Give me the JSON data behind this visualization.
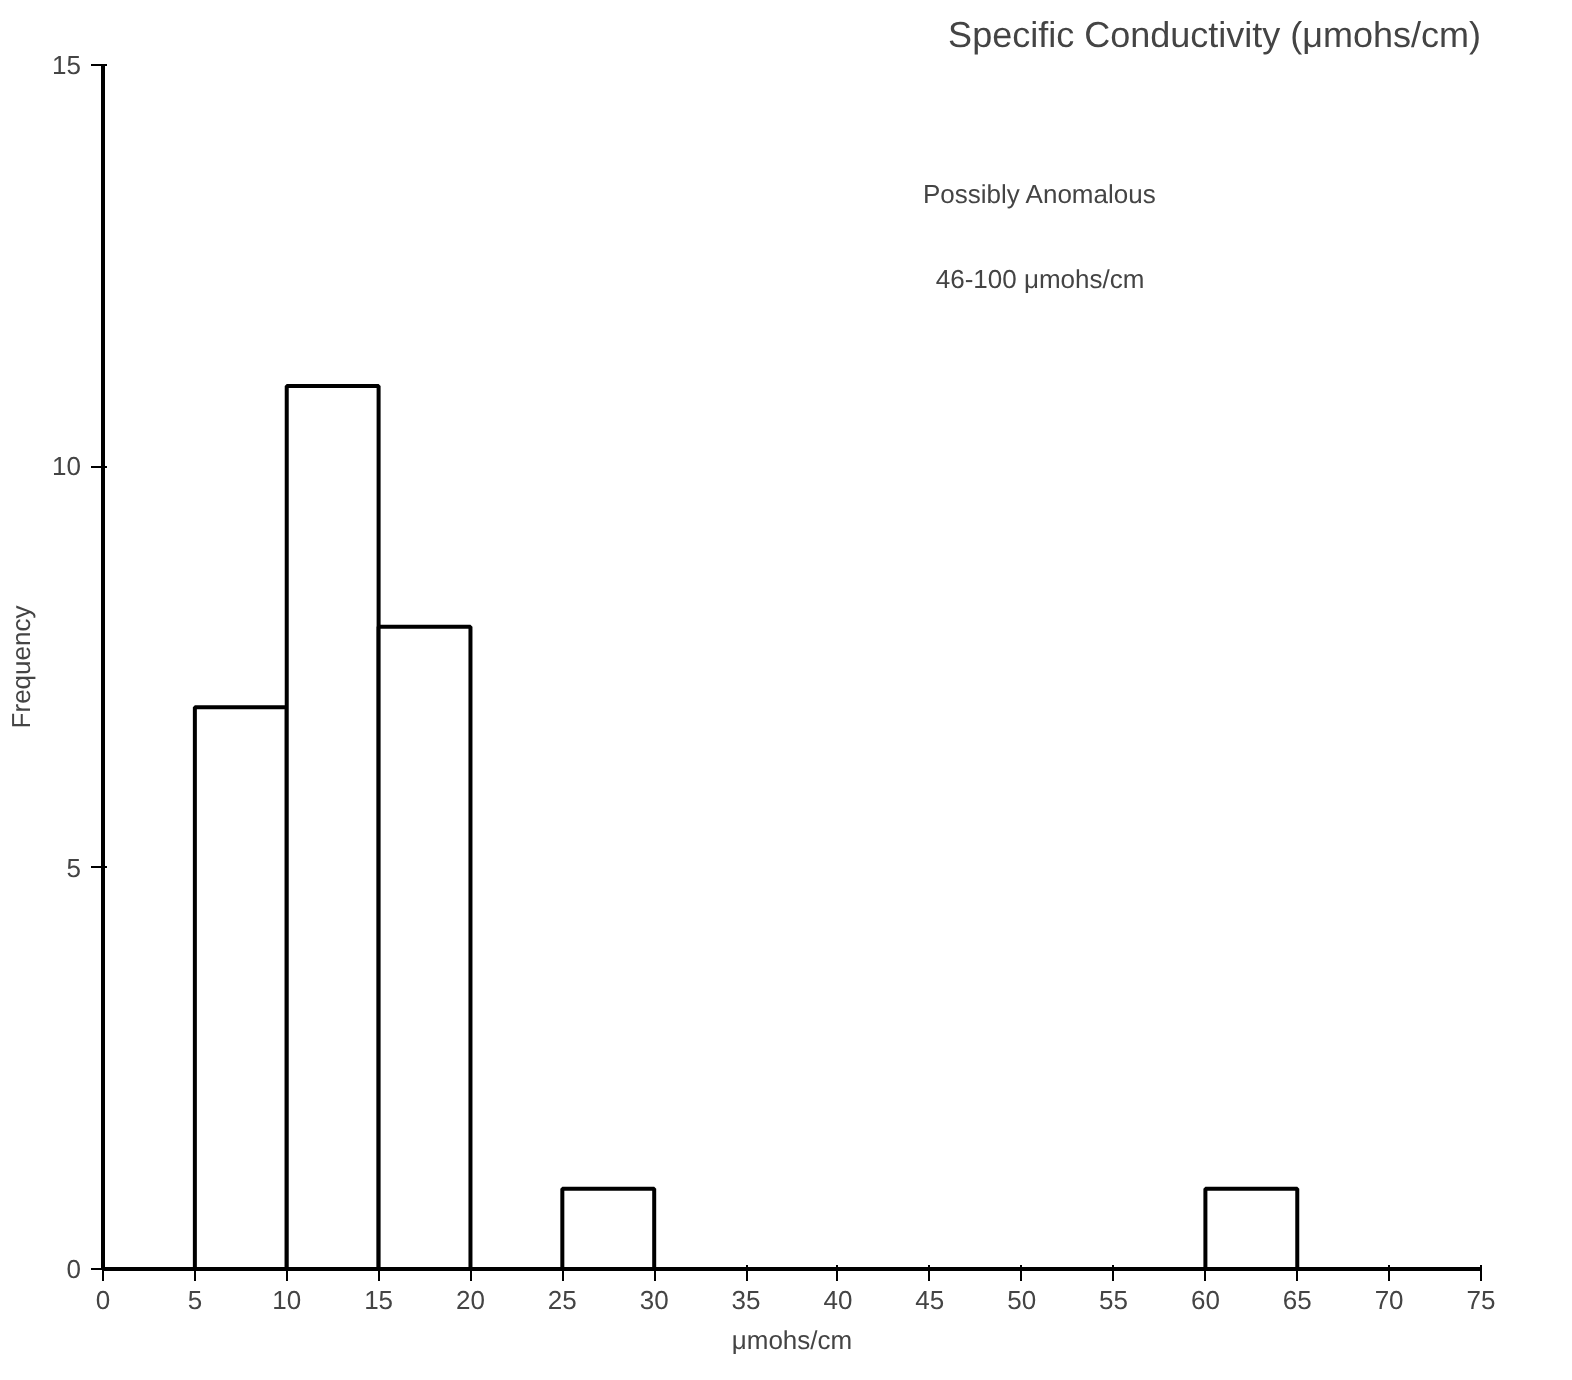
{
  "chart_data": {
    "type": "histogram",
    "title": "Specific Conductivity (μmohs/cm)",
    "xlabel": "μmohs/cm",
    "ylabel": "Frequency",
    "bins": [
      5,
      10,
      15,
      20,
      25,
      30,
      35,
      40,
      45,
      50,
      55,
      60,
      65
    ],
    "values": [
      7,
      11,
      8,
      0,
      1,
      0,
      0,
      0,
      0,
      0,
      0,
      1
    ],
    "color": "#ffffff",
    "xlim": [
      0,
      75
    ],
    "ylim": [
      0,
      15
    ],
    "xticks": [
      0,
      5,
      10,
      15,
      20,
      25,
      30,
      35,
      40,
      45,
      50,
      55,
      60,
      65,
      70,
      75
    ],
    "yticks": [
      0,
      5,
      10,
      15
    ],
    "grid": false,
    "annotations": [
      "Possibly Anomalous",
      "46-100 μmohs/cm"
    ]
  }
}
